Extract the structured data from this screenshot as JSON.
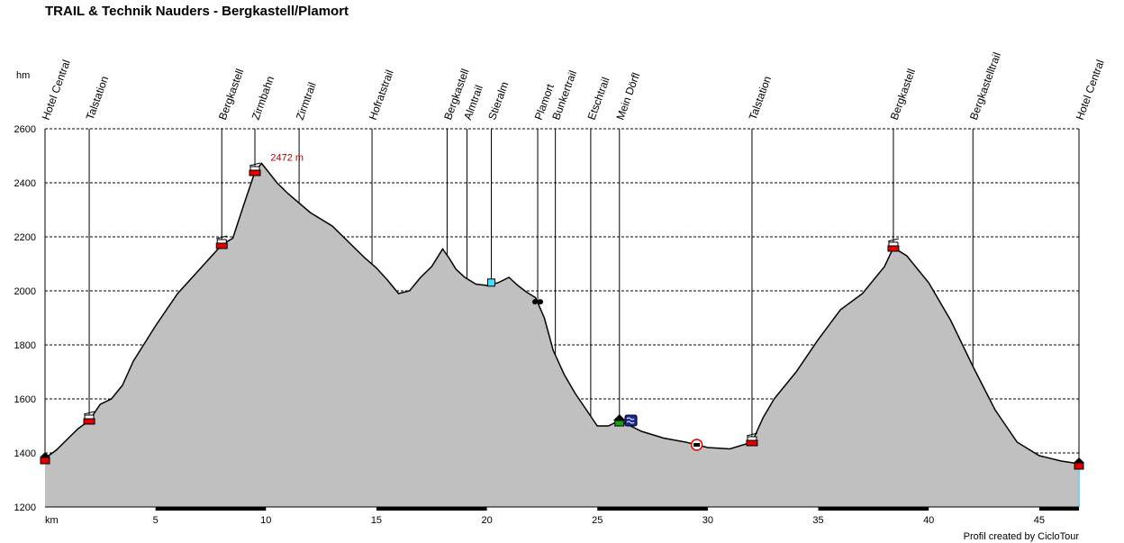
{
  "title": "TRAIL & Technik Nauders - Bergkastell/Plamort",
  "credit": "Profil created by CicloTour",
  "chart_data": {
    "type": "area",
    "title": "TRAIL & Technik Nauders - Bergkastell/Plamort",
    "xlabel": "km",
    "ylabel": "hm",
    "xlim": [
      0,
      46.8
    ],
    "ylim": [
      1200,
      2600
    ],
    "xticks": [
      5,
      10,
      15,
      20,
      25,
      30,
      35,
      40,
      45
    ],
    "yticks": [
      1200,
      1400,
      1600,
      1800,
      2000,
      2200,
      2400,
      2600
    ],
    "grid": true,
    "fill_color": "#c0c0c0",
    "line_color": "#000000",
    "peak_label": "2472 m",
    "peak_label_color": "#b00000",
    "profile": {
      "x": [
        0,
        0.5,
        1,
        1.5,
        2,
        2.5,
        3,
        3.5,
        4,
        5,
        6,
        7,
        8,
        8.5,
        9,
        9.5,
        9.8,
        10.5,
        11,
        12,
        13,
        14,
        14.5,
        15,
        15.5,
        16,
        16.5,
        17,
        17.5,
        18,
        18.3,
        18.6,
        19,
        19.5,
        20,
        20.5,
        21,
        21.4,
        21.8,
        22.2,
        22.6,
        23,
        23.5,
        24,
        24.5,
        25,
        25.5,
        26,
        27,
        28,
        29,
        30,
        31,
        32,
        32.5,
        33,
        34,
        35,
        36,
        37,
        38,
        38.4,
        39,
        40,
        41,
        42,
        43,
        44,
        45,
        46,
        46.8
      ],
      "y": [
        1380,
        1410,
        1450,
        1490,
        1520,
        1580,
        1600,
        1650,
        1740,
        1870,
        1990,
        2080,
        2170,
        2195,
        2320,
        2440,
        2472,
        2400,
        2360,
        2290,
        2240,
        2160,
        2120,
        2085,
        2040,
        1990,
        2000,
        2050,
        2090,
        2155,
        2120,
        2080,
        2050,
        2025,
        2020,
        2030,
        2050,
        2020,
        1995,
        1975,
        1900,
        1780,
        1690,
        1620,
        1560,
        1500,
        1500,
        1520,
        1480,
        1455,
        1440,
        1420,
        1415,
        1440,
        1530,
        1600,
        1700,
        1820,
        1930,
        1990,
        2090,
        2160,
        2130,
        2030,
        1890,
        1720,
        1560,
        1440,
        1390,
        1370,
        1360
      ]
    },
    "waypoints": [
      {
        "label": "Hotel Central",
        "km": 0,
        "icon": "home-icon"
      },
      {
        "label": "Talstation",
        "km": 2.0,
        "icon": "cable-car-icon"
      },
      {
        "label": "Bergkastell",
        "km": 8.0,
        "icon": "cable-car-icon"
      },
      {
        "label": "Zirmbahn",
        "km": 9.5,
        "icon": "cable-car-icon"
      },
      {
        "label": "Zirmtrail",
        "km": 11.5,
        "icon": "none"
      },
      {
        "label": "Hofratstrail",
        "km": 14.8,
        "icon": "none"
      },
      {
        "label": "Bergkastell",
        "km": 18.2,
        "icon": "none"
      },
      {
        "label": "Almtrail",
        "km": 19.1,
        "icon": "none"
      },
      {
        "label": "Stieralm",
        "km": 20.2,
        "icon": "drink-icon"
      },
      {
        "label": "Plamort",
        "km": 22.3,
        "icon": "viewpoint-icon"
      },
      {
        "label": "Bunkertrail",
        "km": 23.1,
        "icon": "none"
      },
      {
        "label": "Etschtrail",
        "km": 24.7,
        "icon": "none"
      },
      {
        "label": "Mein Dörfl",
        "km": 26.0,
        "icon": "village-icon"
      },
      {
        "label": "Talstation",
        "km": 32.0,
        "icon": "cable-car-icon"
      },
      {
        "label": "Bergkastell",
        "km": 38.4,
        "icon": "cable-car-icon"
      },
      {
        "label": "Bergkastelltrail",
        "km": 42.0,
        "icon": "none"
      },
      {
        "label": "Hotel Central",
        "km": 46.8,
        "icon": "home-icon"
      }
    ],
    "extra_icons": [
      {
        "km": 26.5,
        "icon": "water-icon"
      },
      {
        "km": 29.5,
        "icon": "railway-crossing-icon"
      }
    ]
  }
}
